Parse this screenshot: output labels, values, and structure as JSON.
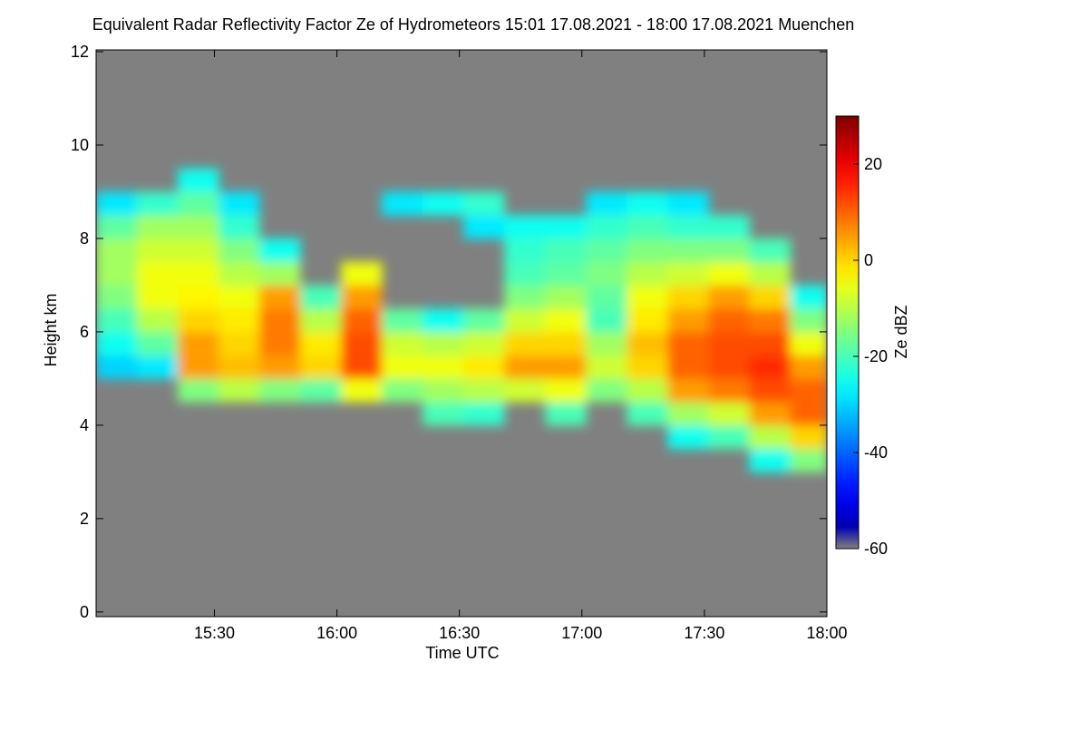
{
  "chart_data": {
    "type": "heatmap",
    "title": "Equivalent Radar Reflectivity Factor Ze of Hydrometeors   15:01 17.08.2021 - 18:00 17.08.2021 Muenchen",
    "x_label": "Time UTC",
    "y_label": "Height km",
    "colorbar_label": "Ze dBZ",
    "xlim": [
      15.017,
      18.0
    ],
    "xticks": [
      {
        "value": 15.5,
        "label": "15:30"
      },
      {
        "value": 16.0,
        "label": "16:00"
      },
      {
        "value": 16.5,
        "label": "16:30"
      },
      {
        "value": 17.0,
        "label": "17:00"
      },
      {
        "value": 17.5,
        "label": "17:30"
      },
      {
        "value": 18.0,
        "label": "18:00"
      }
    ],
    "ylim": [
      -0.1,
      12
    ],
    "yticks": [
      0,
      2,
      4,
      6,
      8,
      10,
      12
    ],
    "zlim": [
      -60,
      30
    ],
    "zticks": [
      -60,
      -40,
      -20,
      0,
      20
    ],
    "colormap": "jet",
    "background": "#808080",
    "x": [
      15.017,
      15.183,
      15.35,
      15.517,
      15.683,
      15.85,
      16.017,
      16.183,
      16.35,
      16.517,
      16.683,
      16.85,
      17.017,
      17.183,
      17.35,
      17.517,
      17.683,
      17.85
    ],
    "y": [
      0,
      0.5,
      1,
      1.5,
      2,
      2.5,
      3,
      3.5,
      4,
      4.5,
      5,
      5.5,
      6,
      6.5,
      7,
      7.5,
      8,
      8.5,
      9,
      9.5,
      10,
      10.5,
      11,
      11.5
    ],
    "values": [
      [
        null,
        null,
        null,
        null,
        null,
        null,
        null,
        null,
        null,
        null,
        null,
        null,
        null,
        null,
        null,
        null,
        null,
        null
      ],
      [
        null,
        null,
        null,
        null,
        null,
        null,
        null,
        null,
        null,
        null,
        null,
        null,
        null,
        null,
        null,
        null,
        null,
        null
      ],
      [
        null,
        null,
        null,
        null,
        null,
        null,
        null,
        null,
        null,
        null,
        null,
        null,
        null,
        null,
        null,
        null,
        null,
        null
      ],
      [
        null,
        null,
        null,
        null,
        null,
        null,
        null,
        null,
        null,
        null,
        null,
        null,
        null,
        null,
        null,
        null,
        null,
        null
      ],
      [
        null,
        null,
        null,
        null,
        null,
        null,
        null,
        null,
        null,
        null,
        null,
        null,
        null,
        null,
        null,
        null,
        null,
        null
      ],
      [
        null,
        null,
        null,
        null,
        null,
        null,
        null,
        null,
        null,
        null,
        null,
        null,
        null,
        null,
        null,
        null,
        null,
        null
      ],
      [
        null,
        null,
        null,
        null,
        null,
        null,
        null,
        null,
        null,
        null,
        null,
        null,
        null,
        null,
        null,
        null,
        -25,
        -15
      ],
      [
        null,
        null,
        null,
        null,
        null,
        null,
        null,
        null,
        null,
        null,
        null,
        null,
        null,
        null,
        -25,
        -20,
        -10,
        0
      ],
      [
        null,
        null,
        null,
        null,
        null,
        null,
        null,
        null,
        -20,
        -22,
        null,
        -20,
        null,
        -20,
        -12,
        -8,
        5,
        10
      ],
      [
        null,
        null,
        -15,
        -10,
        -15,
        -18,
        -5,
        -15,
        -12,
        -10,
        -8,
        -5,
        -15,
        -10,
        5,
        8,
        12,
        10
      ],
      [
        -30,
        -28,
        5,
        2,
        5,
        0,
        12,
        -5,
        -5,
        -2,
        5,
        5,
        -8,
        0,
        10,
        12,
        15,
        5
      ],
      [
        -25,
        -18,
        5,
        0,
        8,
        -2,
        12,
        -8,
        -10,
        -8,
        0,
        0,
        -12,
        2,
        10,
        12,
        12,
        -5
      ],
      [
        -20,
        -10,
        0,
        -2,
        8,
        -10,
        10,
        -18,
        -25,
        -18,
        -8,
        -5,
        -20,
        -2,
        5,
        10,
        8,
        -15
      ],
      [
        -15,
        -5,
        -3,
        -5,
        5,
        -20,
        5,
        null,
        null,
        null,
        -15,
        -12,
        -18,
        -5,
        0,
        5,
        0,
        -25
      ],
      [
        -12,
        -5,
        -5,
        -10,
        -12,
        null,
        -5,
        null,
        null,
        null,
        -20,
        -18,
        -15,
        -10,
        -8,
        -5,
        -10,
        null
      ],
      [
        -12,
        -8,
        -8,
        -15,
        -25,
        null,
        null,
        null,
        null,
        null,
        -22,
        -20,
        -18,
        -15,
        -15,
        -15,
        -20,
        null
      ],
      [
        -18,
        -12,
        -12,
        -22,
        null,
        null,
        null,
        null,
        null,
        -28,
        -25,
        -25,
        -22,
        -20,
        -22,
        -22,
        null,
        null
      ],
      [
        -28,
        -22,
        -18,
        -28,
        null,
        null,
        null,
        -28,
        -25,
        -22,
        null,
        null,
        -28,
        -25,
        -28,
        null,
        null,
        null
      ],
      [
        null,
        null,
        -25,
        null,
        null,
        null,
        null,
        null,
        null,
        null,
        null,
        null,
        null,
        null,
        null,
        null,
        null,
        null
      ],
      [
        null,
        null,
        null,
        null,
        null,
        null,
        null,
        null,
        null,
        null,
        null,
        null,
        null,
        null,
        null,
        null,
        null,
        null
      ],
      [
        null,
        null,
        null,
        null,
        null,
        null,
        null,
        null,
        null,
        null,
        null,
        null,
        null,
        null,
        null,
        null,
        null,
        null
      ],
      [
        null,
        null,
        null,
        null,
        null,
        null,
        null,
        null,
        null,
        null,
        null,
        null,
        null,
        null,
        null,
        null,
        null,
        null
      ],
      [
        null,
        null,
        null,
        null,
        null,
        null,
        null,
        null,
        null,
        null,
        null,
        null,
        null,
        null,
        null,
        null,
        null,
        null
      ],
      [
        null,
        null,
        null,
        null,
        null,
        null,
        null,
        null,
        null,
        null,
        null,
        null,
        null,
        null,
        null,
        null,
        null,
        null
      ]
    ]
  }
}
